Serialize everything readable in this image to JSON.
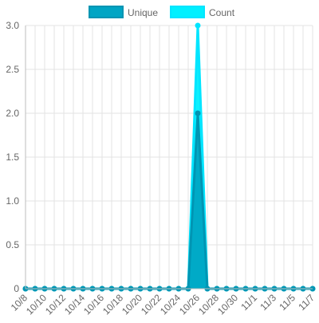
{
  "chart_data": {
    "type": "area",
    "legend_position": "top",
    "grid": true,
    "ylim": [
      0,
      3.0
    ],
    "yticks": [
      "0",
      "0.5",
      "1.0",
      "1.5",
      "2.0",
      "2.5",
      "3.0"
    ],
    "ytick_values": [
      0,
      0.5,
      1.0,
      1.5,
      2.0,
      2.5,
      3.0
    ],
    "x": [
      "10/8",
      "10/9",
      "10/10",
      "10/11",
      "10/12",
      "10/13",
      "10/14",
      "10/15",
      "10/16",
      "10/17",
      "10/18",
      "10/19",
      "10/20",
      "10/21",
      "10/22",
      "10/23",
      "10/24",
      "10/25",
      "10/26",
      "10/27",
      "10/28",
      "10/29",
      "10/30",
      "10/31",
      "11/1",
      "11/2",
      "11/3",
      "11/4",
      "11/5",
      "11/6",
      "11/7"
    ],
    "xtick_labels": [
      "10/8",
      "10/10",
      "10/12",
      "10/14",
      "10/16",
      "10/18",
      "10/20",
      "10/22",
      "10/24",
      "10/26",
      "10/28",
      "10/30",
      "11/1",
      "11/3",
      "11/5",
      "11/7"
    ],
    "series": [
      {
        "name": "Count",
        "color": "#00e5ff",
        "fill": "#00f0ff",
        "values": [
          0,
          0,
          0,
          0,
          0,
          0,
          0,
          0,
          0,
          0,
          0,
          0,
          0,
          0,
          0,
          0,
          0,
          0,
          3,
          0,
          0,
          0,
          0,
          0,
          0,
          0,
          0,
          0,
          0,
          0,
          0
        ]
      },
      {
        "name": "Unique",
        "color": "#0095b3",
        "fill": "#00a5c4",
        "values": [
          0,
          0,
          0,
          0,
          0,
          0,
          0,
          0,
          0,
          0,
          0,
          0,
          0,
          0,
          0,
          0,
          0,
          0,
          2,
          0,
          0,
          0,
          0,
          0,
          0,
          0,
          0,
          0,
          0,
          0,
          0
        ]
      }
    ],
    "legend": [
      "Unique",
      "Count"
    ]
  }
}
